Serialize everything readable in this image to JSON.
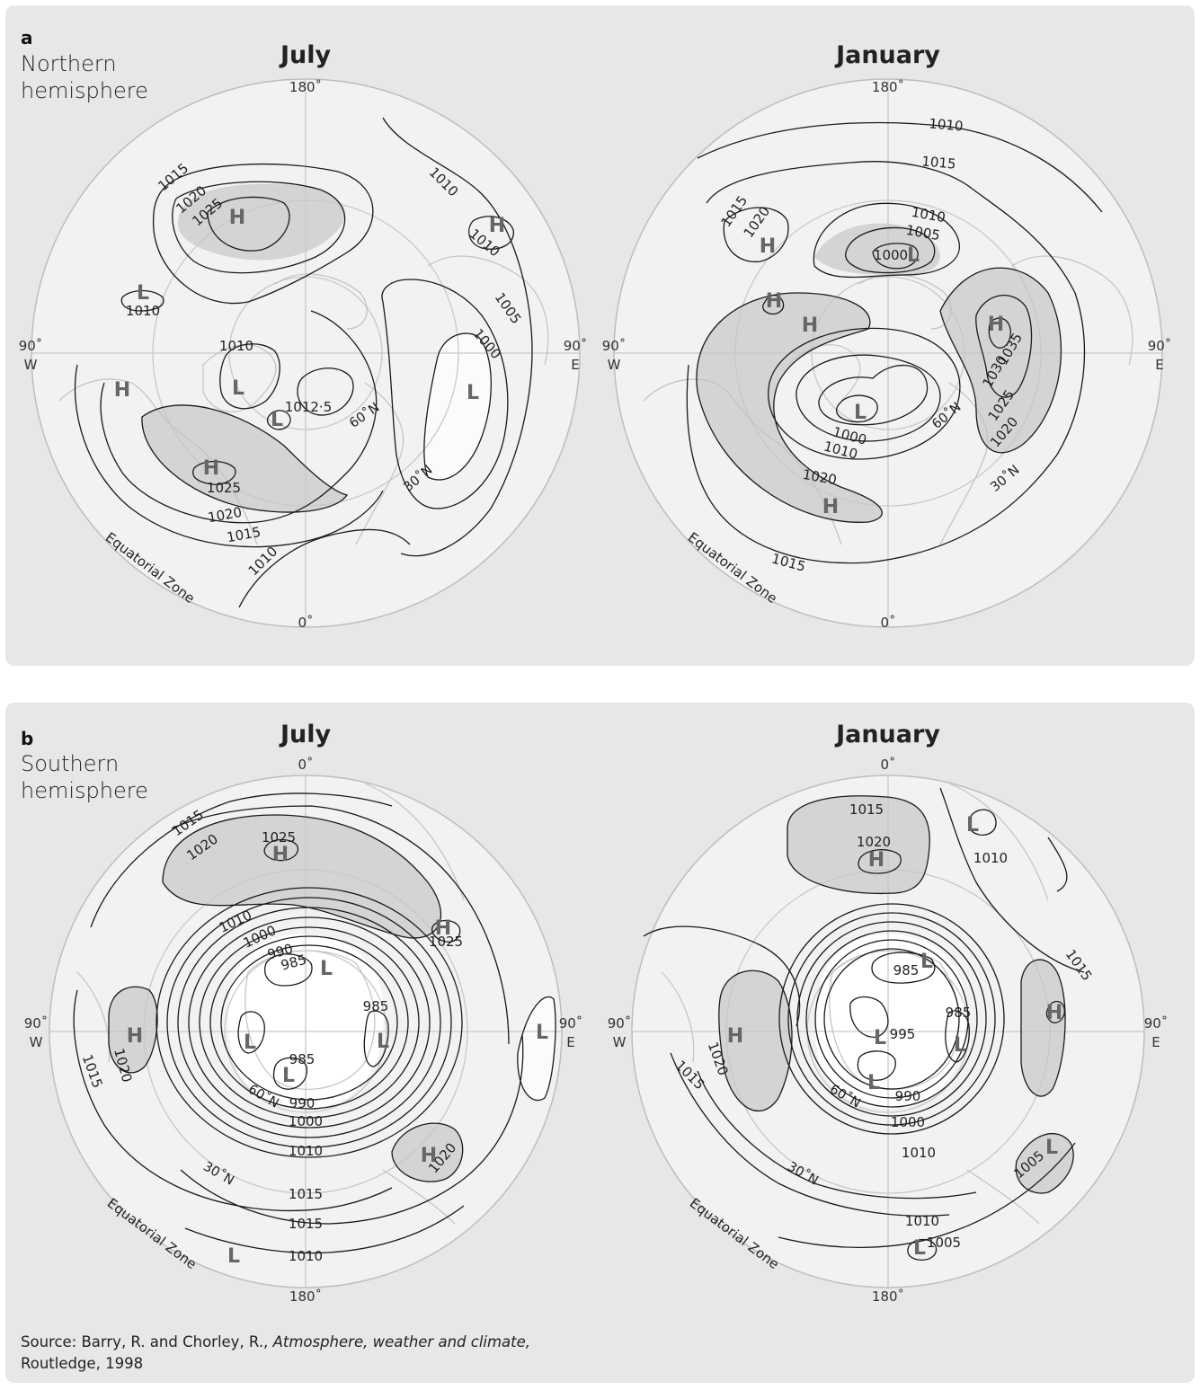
{
  "panel_a": {
    "letter": "a",
    "caption_line1": "Northern",
    "caption_line2": "hemisphere",
    "maps": [
      {
        "title": "July",
        "top_label": "180˚",
        "bottom_label": "0˚",
        "left_label_1": "90˚",
        "left_label_2": "W",
        "right_label_1": "90˚",
        "right_label_2": "E",
        "zone_label": "Equatorial Zone",
        "lat_labels": [
          "60˚N",
          "30˚N"
        ],
        "isobar_labels": [
          "1015",
          "1020",
          "1025",
          "1010",
          "1010",
          "1005",
          "1000",
          "1010",
          "1010",
          "1012·5",
          "1025",
          "1020",
          "1015",
          "1010"
        ],
        "centres": [
          "H",
          "H",
          "L",
          "H",
          "L",
          "L",
          "L",
          "H"
        ]
      },
      {
        "title": "January",
        "top_label": "180˚",
        "bottom_label": "0˚",
        "left_label_1": "90˚",
        "left_label_2": "W",
        "right_label_1": "90˚",
        "right_label_2": "E",
        "zone_label": "Equatorial Zone",
        "lat_labels": [
          "60˚N",
          "30˚N"
        ],
        "isobar_labels": [
          "1010",
          "1015",
          "1015",
          "1020",
          "1010",
          "1005",
          "1000",
          "1035",
          "1030",
          "1025",
          "1020",
          "1000",
          "1010",
          "1020",
          "1015"
        ],
        "centres": [
          "H",
          "H",
          "L",
          "H",
          "H",
          "L",
          "H"
        ]
      }
    ]
  },
  "panel_b": {
    "letter": "b",
    "caption_line1": "Southern",
    "caption_line2": "hemisphere",
    "maps": [
      {
        "title": "July",
        "top_label": "0˚",
        "bottom_label": "180˚",
        "left_label_1": "90˚",
        "left_label_2": "W",
        "right_label_1": "90˚",
        "right_label_2": "E",
        "zone_label": "Equatorial Zone",
        "lat_labels": [
          "60˚N",
          "30˚N"
        ],
        "isobar_labels": [
          "1015",
          "1020",
          "1025",
          "1010",
          "1000",
          "990",
          "985",
          "1025",
          "985",
          "985",
          "990",
          "1000",
          "1010",
          "1020",
          "1015",
          "1015",
          "1010",
          "1020",
          "1015"
        ],
        "centres": [
          "H",
          "H",
          "L",
          "L",
          "L",
          "L",
          "H",
          "L",
          "H",
          "L"
        ]
      },
      {
        "title": "January",
        "top_label": "0˚",
        "bottom_label": "180˚",
        "left_label_1": "90˚",
        "left_label_2": "W",
        "right_label_1": "90˚",
        "right_label_2": "E",
        "zone_label": "Equatorial Zone",
        "lat_labels": [
          "60˚N",
          "30˚N"
        ],
        "isobar_labels": [
          "1015",
          "1020",
          "1010",
          "1015",
          "985",
          "985",
          "995",
          "990",
          "1000",
          "1010",
          "1005",
          "1010",
          "1005",
          "1020",
          "1015"
        ],
        "centres": [
          "H",
          "L",
          "L",
          "H",
          "L",
          "L",
          "L",
          "H",
          "L",
          "L"
        ]
      }
    ]
  },
  "source": {
    "prefix": "Source: Barry, R. and Chorley, R., ",
    "title": "Atmosphere, weather and climate,",
    "suffix": "Routledge, 1998"
  }
}
